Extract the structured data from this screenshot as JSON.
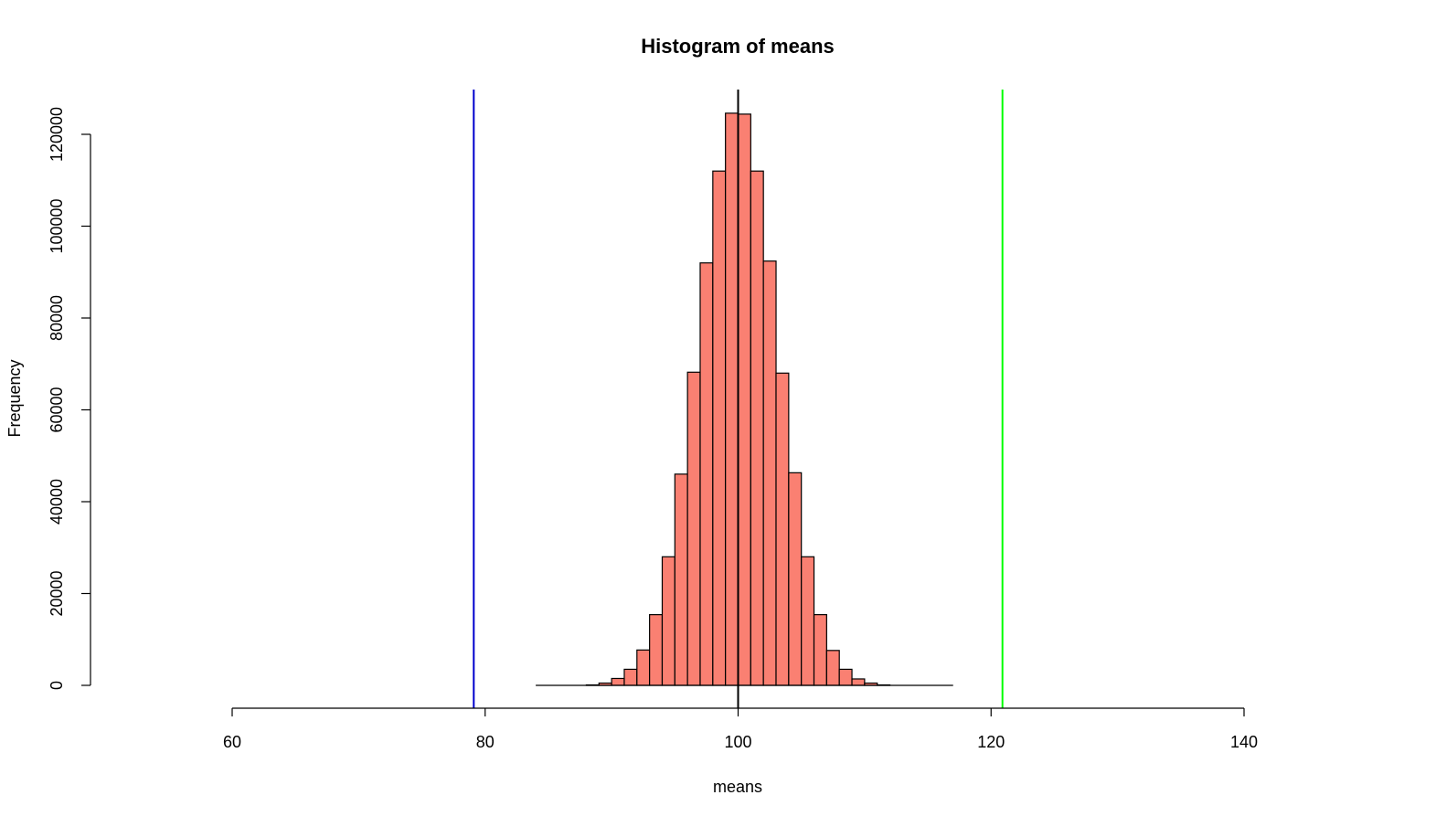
{
  "chart_data": {
    "type": "histogram",
    "title": "Histogram of means",
    "xlabel": "means",
    "ylabel": "Frequency",
    "xlim": [
      50,
      150
    ],
    "ylim": [
      0,
      130000
    ],
    "x_ticks": [
      60,
      80,
      100,
      120,
      140
    ],
    "y_ticks": [
      0,
      20000,
      40000,
      60000,
      80000,
      100000,
      120000
    ],
    "bin_width": 1,
    "bins": [
      {
        "start": 84,
        "end": 85,
        "count": 0
      },
      {
        "start": 85,
        "end": 86,
        "count": 0
      },
      {
        "start": 86,
        "end": 87,
        "count": 0
      },
      {
        "start": 87,
        "end": 88,
        "count": 0
      },
      {
        "start": 88,
        "end": 89,
        "count": 100
      },
      {
        "start": 89,
        "end": 90,
        "count": 500
      },
      {
        "start": 90,
        "end": 91,
        "count": 1500
      },
      {
        "start": 91,
        "end": 92,
        "count": 3500
      },
      {
        "start": 92,
        "end": 93,
        "count": 7700
      },
      {
        "start": 93,
        "end": 94,
        "count": 15400
      },
      {
        "start": 94,
        "end": 95,
        "count": 28000
      },
      {
        "start": 95,
        "end": 96,
        "count": 46000
      },
      {
        "start": 96,
        "end": 97,
        "count": 68200
      },
      {
        "start": 97,
        "end": 98,
        "count": 92000
      },
      {
        "start": 98,
        "end": 99,
        "count": 112000
      },
      {
        "start": 99,
        "end": 100,
        "count": 124600
      },
      {
        "start": 100,
        "end": 101,
        "count": 124400
      },
      {
        "start": 101,
        "end": 102,
        "count": 112000
      },
      {
        "start": 102,
        "end": 103,
        "count": 92400
      },
      {
        "start": 103,
        "end": 104,
        "count": 68000
      },
      {
        "start": 104,
        "end": 105,
        "count": 46300
      },
      {
        "start": 105,
        "end": 106,
        "count": 28000
      },
      {
        "start": 106,
        "end": 107,
        "count": 15400
      },
      {
        "start": 107,
        "end": 108,
        "count": 7600
      },
      {
        "start": 108,
        "end": 109,
        "count": 3500
      },
      {
        "start": 109,
        "end": 110,
        "count": 1400
      },
      {
        "start": 110,
        "end": 111,
        "count": 500
      },
      {
        "start": 111,
        "end": 112,
        "count": 100
      },
      {
        "start": 112,
        "end": 113,
        "count": 0
      },
      {
        "start": 113,
        "end": 114,
        "count": 0
      },
      {
        "start": 114,
        "end": 115,
        "count": 0
      },
      {
        "start": 115,
        "end": 116,
        "count": 0
      },
      {
        "start": 116,
        "end": 117,
        "count": 0
      }
    ],
    "bar_fill": "#FA8072",
    "bar_stroke": "#000000",
    "vlines": [
      {
        "x": 79.1,
        "color": "#0000CD"
      },
      {
        "x": 100,
        "color": "#000000"
      },
      {
        "x": 120.9,
        "color": "#00FF00"
      }
    ],
    "grid": false,
    "legend": "none"
  }
}
